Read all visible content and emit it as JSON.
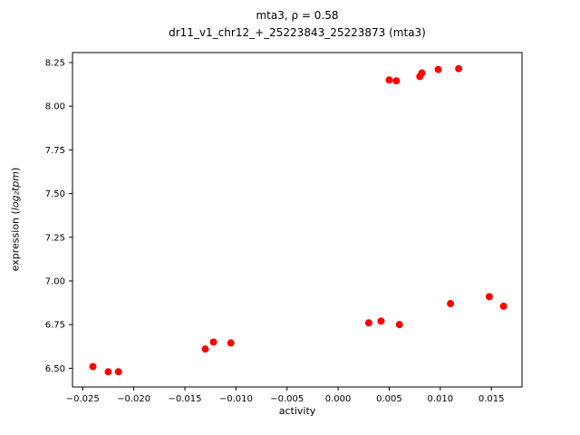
{
  "chart_data": {
    "type": "scatter",
    "title_line1": "mta3, ρ = 0.58",
    "title_line2": "dr11_v1_chr12_+_25223843_25223873 (mta3)",
    "xlabel": "activity",
    "ylabel_prefix": "expression (",
    "ylabel_math": "log₂tpm",
    "ylabel_suffix": ")",
    "marker_color": "#ff0000",
    "grid": false,
    "legend": "none",
    "xlim": [
      -0.026,
      0.018
    ],
    "ylim": [
      6.393,
      8.307
    ],
    "xticks": [
      -0.025,
      -0.02,
      -0.015,
      -0.01,
      -0.005,
      0.0,
      0.005,
      0.01,
      0.015
    ],
    "xtick_labels": [
      "−0.025",
      "−0.020",
      "−0.015",
      "−0.010",
      "−0.005",
      "0.000",
      "0.005",
      "0.010",
      "0.015"
    ],
    "yticks": [
      6.5,
      6.75,
      7.0,
      7.25,
      7.5,
      7.75,
      8.0,
      8.25
    ],
    "ytick_labels": [
      "6.50",
      "6.75",
      "7.00",
      "7.25",
      "7.50",
      "7.75",
      "8.00",
      "8.25"
    ],
    "points": [
      [
        -0.024,
        6.51
      ],
      [
        -0.0225,
        6.48
      ],
      [
        -0.0215,
        6.48
      ],
      [
        -0.013,
        6.61
      ],
      [
        -0.0122,
        6.65
      ],
      [
        -0.0105,
        6.645
      ],
      [
        0.003,
        6.76
      ],
      [
        0.0042,
        6.77
      ],
      [
        0.006,
        6.75
      ],
      [
        0.011,
        6.87
      ],
      [
        0.0148,
        6.91
      ],
      [
        0.0162,
        6.855
      ],
      [
        0.005,
        8.15
      ],
      [
        0.0057,
        8.145
      ],
      [
        0.008,
        8.17
      ],
      [
        0.0082,
        8.19
      ],
      [
        0.0098,
        8.21
      ],
      [
        0.0118,
        8.215
      ]
    ]
  }
}
